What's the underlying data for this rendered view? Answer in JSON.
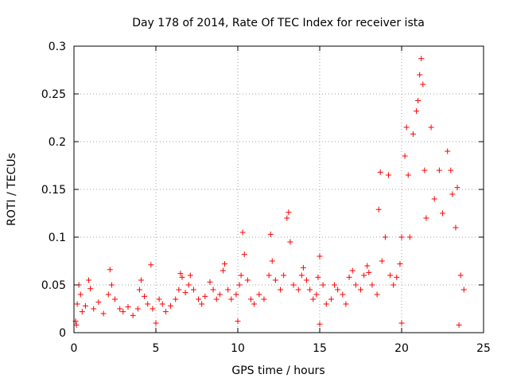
{
  "chart_data": {
    "type": "scatter",
    "title": "Day 178 of 2014, Rate Of TEC Index for receiver ista",
    "xlabel": "GPS time / hours",
    "ylabel": "ROTI / TECUs",
    "xlim": [
      0,
      25
    ],
    "ylim": [
      0,
      0.3
    ],
    "xticks": [
      0,
      5,
      10,
      15,
      20,
      25
    ],
    "xtick_labels": [
      "0",
      "5",
      "10",
      "15",
      "20",
      "25"
    ],
    "yticks": [
      0,
      0.05,
      0.1,
      0.15,
      0.2,
      0.25,
      0.3
    ],
    "ytick_labels": [
      "0",
      "0.05",
      "0.1",
      "0.15",
      "0.2",
      "0.25",
      "0.3"
    ],
    "grid": true,
    "marker": "+",
    "color": "#ff0000",
    "series": [
      {
        "name": "ROTI",
        "points": [
          [
            0.1,
            0.012
          ],
          [
            0.2,
            0.03
          ],
          [
            0.3,
            0.05
          ],
          [
            0.4,
            0.04
          ],
          [
            0.5,
            0.022
          ],
          [
            0.7,
            0.028
          ],
          [
            0.9,
            0.055
          ],
          [
            1.0,
            0.046
          ],
          [
            1.2,
            0.025
          ],
          [
            1.5,
            0.032
          ],
          [
            1.8,
            0.02
          ],
          [
            2.1,
            0.04
          ],
          [
            2.2,
            0.066
          ],
          [
            2.3,
            0.05
          ],
          [
            2.5,
            0.035
          ],
          [
            2.8,
            0.025
          ],
          [
            3.0,
            0.022
          ],
          [
            3.3,
            0.027
          ],
          [
            3.6,
            0.018
          ],
          [
            3.9,
            0.025
          ],
          [
            4.0,
            0.045
          ],
          [
            4.1,
            0.055
          ],
          [
            4.3,
            0.038
          ],
          [
            4.5,
            0.03
          ],
          [
            4.7,
            0.071
          ],
          [
            4.8,
            0.025
          ],
          [
            5.2,
            0.035
          ],
          [
            5.4,
            0.03
          ],
          [
            5.6,
            0.022
          ],
          [
            5.9,
            0.028
          ],
          [
            6.2,
            0.035
          ],
          [
            6.4,
            0.045
          ],
          [
            6.5,
            0.062
          ],
          [
            6.6,
            0.058
          ],
          [
            6.8,
            0.042
          ],
          [
            7.0,
            0.05
          ],
          [
            7.1,
            0.06
          ],
          [
            7.3,
            0.045
          ],
          [
            7.6,
            0.035
          ],
          [
            7.8,
            0.03
          ],
          [
            8.0,
            0.038
          ],
          [
            8.3,
            0.053
          ],
          [
            8.5,
            0.045
          ],
          [
            8.7,
            0.035
          ],
          [
            8.9,
            0.04
          ],
          [
            9.1,
            0.065
          ],
          [
            9.2,
            0.072
          ],
          [
            9.4,
            0.045
          ],
          [
            9.6,
            0.035
          ],
          [
            9.9,
            0.04
          ],
          [
            10.1,
            0.05
          ],
          [
            10.2,
            0.06
          ],
          [
            10.3,
            0.105
          ],
          [
            10.4,
            0.082
          ],
          [
            10.6,
            0.055
          ],
          [
            10.8,
            0.035
          ],
          [
            11.0,
            0.03
          ],
          [
            11.3,
            0.04
          ],
          [
            11.6,
            0.035
          ],
          [
            11.9,
            0.06
          ],
          [
            12.0,
            0.103
          ],
          [
            12.1,
            0.075
          ],
          [
            12.3,
            0.055
          ],
          [
            12.6,
            0.045
          ],
          [
            12.8,
            0.06
          ],
          [
            13.0,
            0.12
          ],
          [
            13.1,
            0.126
          ],
          [
            13.2,
            0.095
          ],
          [
            13.4,
            0.05
          ],
          [
            13.7,
            0.045
          ],
          [
            13.9,
            0.06
          ],
          [
            14.0,
            0.068
          ],
          [
            14.2,
            0.055
          ],
          [
            14.4,
            0.045
          ],
          [
            14.6,
            0.035
          ],
          [
            14.8,
            0.04
          ],
          [
            14.9,
            0.058
          ],
          [
            15.0,
            0.08
          ],
          [
            15.2,
            0.05
          ],
          [
            15.4,
            0.03
          ],
          [
            15.7,
            0.035
          ],
          [
            15.9,
            0.05
          ],
          [
            16.1,
            0.045
          ],
          [
            16.4,
            0.04
          ],
          [
            16.6,
            0.03
          ],
          [
            16.8,
            0.058
          ],
          [
            17.0,
            0.065
          ],
          [
            17.2,
            0.05
          ],
          [
            17.5,
            0.045
          ],
          [
            17.7,
            0.06
          ],
          [
            17.9,
            0.07
          ],
          [
            18.0,
            0.063
          ],
          [
            18.2,
            0.05
          ],
          [
            18.5,
            0.04
          ],
          [
            18.6,
            0.129
          ],
          [
            18.7,
            0.168
          ],
          [
            18.8,
            0.075
          ],
          [
            19.0,
            0.1
          ],
          [
            19.2,
            0.165
          ],
          [
            19.3,
            0.06
          ],
          [
            19.5,
            0.05
          ],
          [
            19.7,
            0.058
          ],
          [
            19.9,
            0.072
          ],
          [
            20.0,
            0.1
          ],
          [
            20.2,
            0.185
          ],
          [
            20.3,
            0.215
          ],
          [
            20.4,
            0.165
          ],
          [
            20.5,
            0.1
          ],
          [
            20.7,
            0.208
          ],
          [
            20.9,
            0.232
          ],
          [
            21.0,
            0.243
          ],
          [
            21.1,
            0.27
          ],
          [
            21.2,
            0.287
          ],
          [
            21.3,
            0.26
          ],
          [
            21.4,
            0.17
          ],
          [
            21.5,
            0.12
          ],
          [
            21.8,
            0.215
          ],
          [
            22.0,
            0.14
          ],
          [
            22.3,
            0.17
          ],
          [
            22.5,
            0.125
          ],
          [
            22.8,
            0.19
          ],
          [
            23.0,
            0.17
          ],
          [
            23.1,
            0.145
          ],
          [
            23.3,
            0.11
          ],
          [
            23.4,
            0.152
          ],
          [
            23.6,
            0.06
          ],
          [
            23.8,
            0.045
          ],
          [
            0.15,
            0.008
          ],
          [
            5.0,
            0.01
          ],
          [
            10.0,
            0.012
          ],
          [
            15.0,
            0.009
          ],
          [
            20.0,
            0.01
          ],
          [
            23.5,
            0.008
          ]
        ]
      }
    ]
  }
}
